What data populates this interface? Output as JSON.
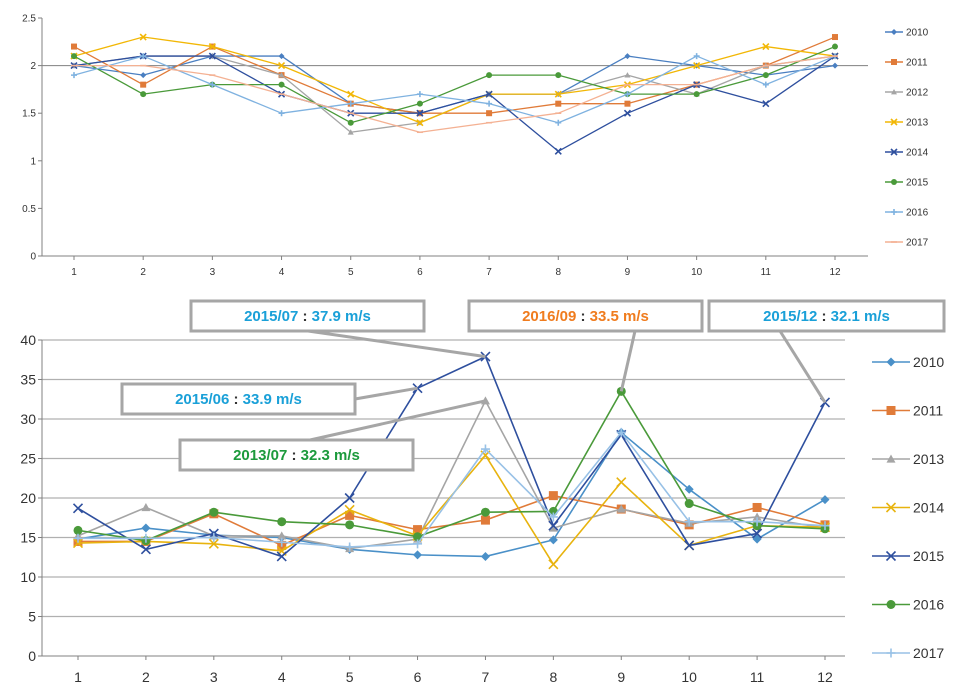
{
  "chart_data": [
    {
      "type": "line",
      "title": "",
      "xlabel": "",
      "ylabel": "",
      "x": [
        1,
        2,
        3,
        4,
        5,
        6,
        7,
        8,
        9,
        10,
        11,
        12
      ],
      "ylim": [
        0,
        2.5
      ],
      "yticks": [
        "0",
        "0.5",
        "1",
        "1.5",
        "2",
        "2.5"
      ],
      "grid": false,
      "reference_line": 2,
      "legend_position": "right",
      "series": [
        {
          "name": "2010",
          "color": "#4a7fc1",
          "marker": "diamond",
          "values": [
            2.0,
            1.9,
            2.1,
            2.1,
            1.6,
            1.5,
            1.7,
            1.7,
            2.1,
            2.0,
            1.9,
            2.0
          ]
        },
        {
          "name": "2011",
          "color": "#e07b39",
          "marker": "square",
          "values": [
            2.2,
            1.8,
            2.2,
            1.9,
            1.6,
            1.5,
            1.5,
            1.6,
            1.6,
            1.8,
            2.0,
            2.3
          ]
        },
        {
          "name": "2012",
          "color": "#a5a5a5",
          "marker": "triangle",
          "values": [
            2.0,
            2.1,
            2.1,
            1.9,
            1.3,
            1.4,
            1.7,
            1.7,
            1.9,
            1.7,
            2.0,
            2.1
          ]
        },
        {
          "name": "2013",
          "color": "#f2b705",
          "marker": "x",
          "values": [
            2.1,
            2.3,
            2.2,
            2.0,
            1.7,
            1.4,
            1.7,
            1.7,
            1.8,
            2.0,
            2.2,
            2.1
          ]
        },
        {
          "name": "2014",
          "color": "#2e4f9e",
          "marker": "x",
          "values": [
            2.0,
            2.1,
            2.1,
            1.7,
            1.5,
            1.5,
            1.7,
            1.1,
            1.5,
            1.8,
            1.6,
            2.1
          ]
        },
        {
          "name": "2015",
          "color": "#4a9a3a",
          "marker": "circle",
          "values": [
            2.1,
            1.7,
            1.8,
            1.8,
            1.4,
            1.6,
            1.9,
            1.9,
            1.7,
            1.7,
            1.9,
            2.2
          ]
        },
        {
          "name": "2016",
          "color": "#7fb2e0",
          "marker": "plus",
          "values": [
            1.9,
            2.1,
            1.8,
            1.5,
            1.6,
            1.7,
            1.6,
            1.4,
            1.7,
            2.1,
            1.8,
            2.1
          ]
        },
        {
          "name": "2017",
          "color": "#f4b193",
          "marker": "dash",
          "values": [
            2.0,
            2.0,
            1.9,
            1.7,
            1.5,
            1.3,
            1.4,
            1.5,
            1.8,
            1.8,
            2.0,
            2.1
          ]
        }
      ]
    },
    {
      "type": "line",
      "title": "",
      "xlabel": "",
      "ylabel": "",
      "x": [
        1,
        2,
        3,
        4,
        5,
        6,
        7,
        8,
        9,
        10,
        11,
        12
      ],
      "ylim": [
        0,
        40
      ],
      "yticks": [
        "0",
        "5",
        "10",
        "15",
        "20",
        "25",
        "30",
        "35",
        "40"
      ],
      "grid": true,
      "legend_position": "right",
      "series": [
        {
          "name": "2010",
          "color": "#4a90c8",
          "marker": "diamond",
          "values": [
            14.8,
            16.2,
            15.3,
            15.0,
            13.5,
            12.8,
            12.6,
            14.7,
            28.3,
            21.1,
            14.8,
            19.8
          ]
        },
        {
          "name": "2011",
          "color": "#e07b39",
          "marker": "square",
          "values": [
            14.5,
            14.5,
            18.0,
            14.0,
            17.8,
            16.0,
            17.2,
            20.3,
            18.6,
            16.6,
            18.8,
            16.6
          ]
        },
        {
          "name": "2013",
          "color": "#a5a5a5",
          "marker": "triangle",
          "values": [
            15.2,
            18.8,
            15.2,
            15.2,
            13.6,
            14.8,
            32.3,
            16.2,
            18.6,
            16.8,
            17.6,
            16.2
          ]
        },
        {
          "name": "2014",
          "color": "#e8b30e",
          "marker": "x",
          "values": [
            14.3,
            14.5,
            14.2,
            13.3,
            18.5,
            15.2,
            25.4,
            11.6,
            22.0,
            14.0,
            16.5,
            16.3
          ]
        },
        {
          "name": "2015",
          "color": "#2e4f9e",
          "marker": "x",
          "values": [
            18.7,
            13.5,
            15.5,
            12.6,
            20.0,
            33.9,
            37.9,
            16.5,
            28.0,
            14.0,
            15.5,
            32.1
          ]
        },
        {
          "name": "2016",
          "color": "#4a9a3a",
          "marker": "circle",
          "values": [
            15.9,
            14.6,
            18.2,
            17.0,
            16.6,
            15.1,
            18.2,
            18.3,
            33.5,
            19.3,
            16.5,
            16.1
          ]
        },
        {
          "name": "2017",
          "color": "#98c1e6",
          "marker": "plus",
          "values": [
            14.9,
            14.9,
            15.0,
            14.4,
            13.8,
            14.2,
            26.2,
            17.6,
            28.3,
            17.0,
            17.0,
            16.5
          ]
        }
      ],
      "annotations": [
        {
          "label": "2015/07",
          "sep": " : ",
          "value": "37.9 m/s",
          "color": "#1aa0d8",
          "target_x": 7,
          "target_y": 37.9
        },
        {
          "label": "2016/09",
          "sep": " : ",
          "value": "33.5 m/s",
          "color": "#f07c1e",
          "target_x": 9,
          "target_y": 33.5
        },
        {
          "label": "2015/12",
          "sep": " : ",
          "value": "32.1 m/s",
          "color": "#1aa0d8",
          "target_x": 12,
          "target_y": 32.1
        },
        {
          "label": "2015/06",
          "sep": " : ",
          "value": "33.9 m/s",
          "color": "#1aa0d8",
          "target_x": 6,
          "target_y": 33.9
        },
        {
          "label": "2013/07",
          "sep": " : ",
          "value": "32.3 m/s",
          "color": "#1c9a3c",
          "target_x": 7,
          "target_y": 32.3
        }
      ]
    }
  ]
}
